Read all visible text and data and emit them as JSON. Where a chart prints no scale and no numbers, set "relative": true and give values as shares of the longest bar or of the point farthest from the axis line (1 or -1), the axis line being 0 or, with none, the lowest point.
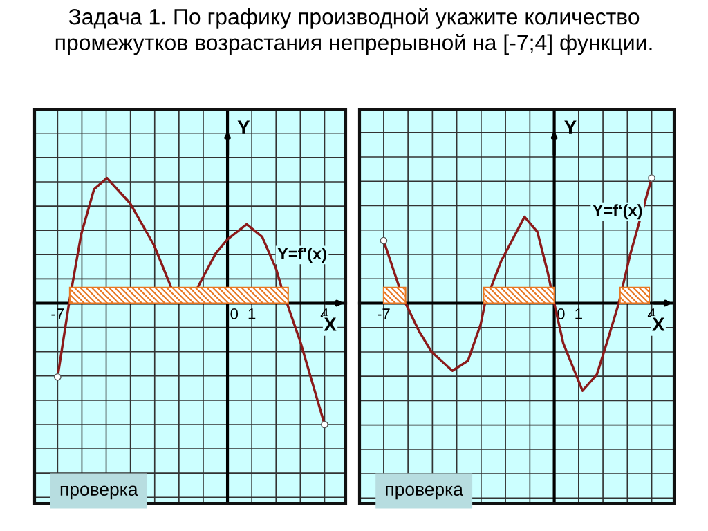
{
  "chart_data": [
    {
      "type": "line",
      "title": "Задача 1. По графику производной укажите количество промежутков возрастания непрерывной на [-7;4] функции.",
      "relative": true,
      "series": [
        {
          "color": "#8b1a1a",
          "x": [
            -7,
            -6.53,
            -6.03,
            -5.5,
            -4.97,
            -4.02,
            -3.02,
            -2.33,
            -1.8,
            -1.22,
            -0.48,
            0,
            0.79,
            1.43,
            2.01,
            2.22,
            2.45,
            3.02,
            4
          ],
          "values": [
            -0.59,
            0,
            0.55,
            0.91,
            1,
            0.8,
            0.46,
            0.13,
            null,
            0.13,
            0.4,
            0.51,
            0.63,
            0.53,
            0.27,
            0.13,
            0,
            -0.32,
            -0.97
          ]
        },
        {
          "type": "scatter",
          "color": "#ffffff",
          "marker": "circle",
          "x": [
            -7,
            4
          ],
          "values": [
            -0.59,
            -0.97
          ]
        }
      ],
      "xlim": [
        -7.95,
        4.87
      ],
      "xticks": [
        {
          "value": -7,
          "label": "-7"
        },
        {
          "value": -6,
          "label": null
        },
        {
          "value": -5,
          "label": null
        },
        {
          "value": -4,
          "label": null
        },
        {
          "value": -3,
          "label": null
        },
        {
          "value": -2,
          "label": null
        },
        {
          "value": -1,
          "label": null
        },
        0,
        1,
        {
          "value": 2,
          "label": null
        },
        {
          "value": 3,
          "label": null
        },
        4
      ],
      "tick_labels": "x",
      "grid": true,
      "xlabel": "X",
      "ylabel": "Y",
      "bands": [
        {
          "axis": "x",
          "from": -6.5,
          "to": 2.5,
          "color": "#e87722"
        }
      ],
      "annotations": [
        "Y=f'(x)",
        "проверка"
      ]
    },
    {
      "type": "line",
      "relative": true,
      "series": [
        {
          "color": "#8b1a1a",
          "x": [
            -7,
            -6.33,
            -6.1,
            -5.56,
            -5.03,
            -4.18,
            -3.54,
            -3.02,
            -2.84,
            -2.17,
            -1.22,
            -0.69,
            -0.26,
            0,
            0.37,
            1.16,
            1.75,
            2.17,
            2.65,
            3.12,
            4
          ],
          "values": [
            0.5,
            0.11,
            0,
            -0.22,
            -0.39,
            -0.54,
            -0.46,
            -0.17,
            0,
            0.34,
            0.69,
            0.57,
            0.24,
            0,
            -0.32,
            -0.7,
            -0.57,
            -0.31,
            0,
            0.39,
            1
          ]
        },
        {
          "type": "scatter",
          "color": "#ffffff",
          "marker": "circle",
          "x": [
            -7,
            4
          ],
          "values": [
            0.5,
            1
          ]
        }
      ],
      "xlim": [
        -7.99,
        4.92
      ],
      "xticks": [
        {
          "value": -7,
          "label": "-7"
        },
        {
          "value": -6,
          "label": null
        },
        {
          "value": -5,
          "label": null
        },
        {
          "value": -4,
          "label": null
        },
        {
          "value": -3,
          "label": null
        },
        {
          "value": -2,
          "label": null
        },
        {
          "value": -1,
          "label": null
        },
        0,
        1,
        {
          "value": 2,
          "label": null
        },
        {
          "value": 3,
          "label": null
        },
        4
      ],
      "tick_labels": "x",
      "grid": true,
      "xlabel": "X",
      "ylabel": "Y",
      "bands": [
        {
          "axis": "x",
          "from": -7,
          "to": -6.1,
          "color": "#e87722"
        },
        {
          "axis": "x",
          "from": -2.9,
          "to": 0,
          "color": "#e87722"
        },
        {
          "axis": "x",
          "from": 2.7,
          "to": 3.9,
          "color": "#e87722"
        }
      ],
      "annotations": [
        "Y=f‘(x)",
        "проверка"
      ]
    }
  ]
}
